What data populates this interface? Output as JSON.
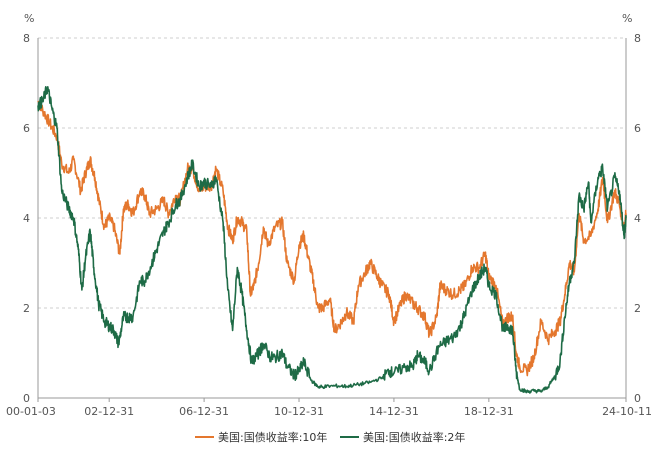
{
  "chart_data": {
    "type": "line",
    "y_unit_left": "%",
    "y_unit_right": "%",
    "ylim": [
      0,
      8
    ],
    "yticks": [
      0,
      2,
      4,
      6,
      8
    ],
    "grid": "horizontal-dashed",
    "legend_position": "bottom",
    "x_tick_labels": [
      "00-01-03",
      "02-12-31",
      "06-12-31",
      "10-12-31",
      "14-12-31",
      "18-12-31",
      "24-10-11"
    ],
    "x_tick_dates": [
      2000.0,
      2003.0,
      2007.0,
      2011.0,
      2015.0,
      2019.0,
      2024.78
    ],
    "xlim": [
      2000.0,
      2024.78
    ],
    "colors": {
      "series_10y": "#e4772e",
      "series_2y": "#1e6b46",
      "grid": "#cfcfcf",
      "axis": "#9a9a9a"
    },
    "series": [
      {
        "name": "美国:国债收益率:10年",
        "points": [
          [
            2000.0,
            6.6
          ],
          [
            2000.2,
            6.4
          ],
          [
            2000.5,
            6.1
          ],
          [
            2000.8,
            5.8
          ],
          [
            2001.0,
            5.2
          ],
          [
            2001.3,
            5.0
          ],
          [
            2001.5,
            5.3
          ],
          [
            2001.8,
            4.6
          ],
          [
            2002.0,
            5.0
          ],
          [
            2002.2,
            5.3
          ],
          [
            2002.4,
            4.9
          ],
          [
            2002.6,
            4.3
          ],
          [
            2002.8,
            3.8
          ],
          [
            2003.0,
            4.0
          ],
          [
            2003.2,
            3.8
          ],
          [
            2003.45,
            3.2
          ],
          [
            2003.6,
            4.2
          ],
          [
            2003.8,
            4.3
          ],
          [
            2004.0,
            4.1
          ],
          [
            2004.3,
            4.6
          ],
          [
            2004.5,
            4.5
          ],
          [
            2004.7,
            4.1
          ],
          [
            2005.0,
            4.2
          ],
          [
            2005.3,
            4.4
          ],
          [
            2005.5,
            4.1
          ],
          [
            2005.8,
            4.5
          ],
          [
            2006.0,
            4.4
          ],
          [
            2006.3,
            5.1
          ],
          [
            2006.5,
            5.1
          ],
          [
            2006.8,
            4.6
          ],
          [
            2007.0,
            4.7
          ],
          [
            2007.3,
            4.7
          ],
          [
            2007.5,
            5.1
          ],
          [
            2007.8,
            4.6
          ],
          [
            2008.0,
            3.8
          ],
          [
            2008.2,
            3.5
          ],
          [
            2008.4,
            4.0
          ],
          [
            2008.6,
            3.9
          ],
          [
            2008.8,
            3.7
          ],
          [
            2008.95,
            2.3
          ],
          [
            2009.1,
            2.5
          ],
          [
            2009.3,
            3.0
          ],
          [
            2009.5,
            3.8
          ],
          [
            2009.7,
            3.4
          ],
          [
            2010.0,
            3.8
          ],
          [
            2010.3,
            3.9
          ],
          [
            2010.5,
            3.0
          ],
          [
            2010.8,
            2.6
          ],
          [
            2011.0,
            3.4
          ],
          [
            2011.2,
            3.6
          ],
          [
            2011.4,
            3.1
          ],
          [
            2011.6,
            2.6
          ],
          [
            2011.8,
            2.0
          ],
          [
            2012.0,
            2.0
          ],
          [
            2012.3,
            2.2
          ],
          [
            2012.5,
            1.5
          ],
          [
            2012.8,
            1.7
          ],
          [
            2013.0,
            1.9
          ],
          [
            2013.3,
            1.7
          ],
          [
            2013.5,
            2.5
          ],
          [
            2013.8,
            2.8
          ],
          [
            2014.0,
            3.0
          ],
          [
            2014.3,
            2.7
          ],
          [
            2014.5,
            2.5
          ],
          [
            2014.8,
            2.3
          ],
          [
            2015.0,
            1.7
          ],
          [
            2015.3,
            2.1
          ],
          [
            2015.5,
            2.3
          ],
          [
            2015.8,
            2.1
          ],
          [
            2016.0,
            2.0
          ],
          [
            2016.3,
            1.8
          ],
          [
            2016.5,
            1.4
          ],
          [
            2016.8,
            1.8
          ],
          [
            2016.95,
            2.5
          ],
          [
            2017.2,
            2.4
          ],
          [
            2017.5,
            2.3
          ],
          [
            2017.8,
            2.4
          ],
          [
            2018.0,
            2.5
          ],
          [
            2018.3,
            2.9
          ],
          [
            2018.6,
            2.9
          ],
          [
            2018.85,
            3.2
          ],
          [
            2019.0,
            2.7
          ],
          [
            2019.3,
            2.5
          ],
          [
            2019.6,
            1.6
          ],
          [
            2019.8,
            1.8
          ],
          [
            2020.0,
            1.8
          ],
          [
            2020.15,
            1.0
          ],
          [
            2020.3,
            0.7
          ],
          [
            2020.6,
            0.6
          ],
          [
            2020.9,
            0.9
          ],
          [
            2021.2,
            1.7
          ],
          [
            2021.5,
            1.3
          ],
          [
            2021.8,
            1.5
          ],
          [
            2022.0,
            1.7
          ],
          [
            2022.2,
            2.3
          ],
          [
            2022.4,
            3.0
          ],
          [
            2022.6,
            2.8
          ],
          [
            2022.8,
            4.1
          ],
          [
            2023.0,
            3.5
          ],
          [
            2023.3,
            3.6
          ],
          [
            2023.6,
            4.2
          ],
          [
            2023.8,
            4.9
          ],
          [
            2024.0,
            3.9
          ],
          [
            2024.3,
            4.6
          ],
          [
            2024.5,
            4.3
          ],
          [
            2024.7,
            3.8
          ],
          [
            2024.78,
            4.1
          ]
        ]
      },
      {
        "name": "美国:国债收益率:2年",
        "points": [
          [
            2000.0,
            6.5
          ],
          [
            2000.2,
            6.6
          ],
          [
            2000.4,
            6.9
          ],
          [
            2000.6,
            6.4
          ],
          [
            2000.8,
            6.0
          ],
          [
            2001.0,
            4.6
          ],
          [
            2001.3,
            4.2
          ],
          [
            2001.5,
            4.0
          ],
          [
            2001.7,
            3.3
          ],
          [
            2001.85,
            2.4
          ],
          [
            2002.0,
            3.1
          ],
          [
            2002.2,
            3.7
          ],
          [
            2002.35,
            2.9
          ],
          [
            2002.55,
            2.1
          ],
          [
            2002.8,
            1.7
          ],
          [
            2003.0,
            1.6
          ],
          [
            2003.2,
            1.5
          ],
          [
            2003.4,
            1.2
          ],
          [
            2003.6,
            1.8
          ],
          [
            2003.8,
            1.8
          ],
          [
            2004.0,
            1.8
          ],
          [
            2004.3,
            2.6
          ],
          [
            2004.5,
            2.6
          ],
          [
            2004.8,
            3.0
          ],
          [
            2005.0,
            3.3
          ],
          [
            2005.3,
            3.7
          ],
          [
            2005.5,
            3.9
          ],
          [
            2005.8,
            4.3
          ],
          [
            2006.0,
            4.4
          ],
          [
            2006.3,
            4.9
          ],
          [
            2006.5,
            5.2
          ],
          [
            2006.8,
            4.7
          ],
          [
            2007.0,
            4.8
          ],
          [
            2007.3,
            4.7
          ],
          [
            2007.5,
            4.9
          ],
          [
            2007.8,
            3.9
          ],
          [
            2008.0,
            2.4
          ],
          [
            2008.2,
            1.5
          ],
          [
            2008.4,
            2.9
          ],
          [
            2008.6,
            2.3
          ],
          [
            2008.8,
            1.5
          ],
          [
            2009.0,
            0.8
          ],
          [
            2009.3,
            1.0
          ],
          [
            2009.5,
            1.2
          ],
          [
            2009.8,
            0.9
          ],
          [
            2010.0,
            0.9
          ],
          [
            2010.3,
            1.0
          ],
          [
            2010.5,
            0.7
          ],
          [
            2010.8,
            0.5
          ],
          [
            2011.0,
            0.6
          ],
          [
            2011.2,
            0.8
          ],
          [
            2011.5,
            0.4
          ],
          [
            2011.8,
            0.25
          ],
          [
            2012.0,
            0.25
          ],
          [
            2012.5,
            0.27
          ],
          [
            2013.0,
            0.26
          ],
          [
            2013.5,
            0.3
          ],
          [
            2014.0,
            0.35
          ],
          [
            2014.5,
            0.45
          ],
          [
            2014.8,
            0.6
          ],
          [
            2015.0,
            0.55
          ],
          [
            2015.5,
            0.7
          ],
          [
            2015.8,
            0.7
          ],
          [
            2016.0,
            0.95
          ],
          [
            2016.3,
            0.8
          ],
          [
            2016.5,
            0.6
          ],
          [
            2016.9,
            1.15
          ],
          [
            2017.2,
            1.25
          ],
          [
            2017.5,
            1.35
          ],
          [
            2017.8,
            1.6
          ],
          [
            2018.0,
            1.9
          ],
          [
            2018.3,
            2.4
          ],
          [
            2018.6,
            2.7
          ],
          [
            2018.85,
            2.9
          ],
          [
            2019.0,
            2.5
          ],
          [
            2019.3,
            2.3
          ],
          [
            2019.6,
            1.5
          ],
          [
            2019.8,
            1.6
          ],
          [
            2020.0,
            1.5
          ],
          [
            2020.15,
            0.6
          ],
          [
            2020.3,
            0.2
          ],
          [
            2020.6,
            0.14
          ],
          [
            2020.9,
            0.16
          ],
          [
            2021.2,
            0.15
          ],
          [
            2021.5,
            0.25
          ],
          [
            2021.8,
            0.5
          ],
          [
            2022.0,
            0.8
          ],
          [
            2022.2,
            1.8
          ],
          [
            2022.4,
            2.6
          ],
          [
            2022.6,
            3.0
          ],
          [
            2022.8,
            4.5
          ],
          [
            2023.0,
            4.2
          ],
          [
            2023.2,
            4.8
          ],
          [
            2023.3,
            3.9
          ],
          [
            2023.6,
            4.9
          ],
          [
            2023.8,
            5.1
          ],
          [
            2024.0,
            4.2
          ],
          [
            2024.3,
            4.9
          ],
          [
            2024.5,
            4.6
          ],
          [
            2024.7,
            3.6
          ],
          [
            2024.78,
            4.0
          ]
        ]
      }
    ]
  }
}
